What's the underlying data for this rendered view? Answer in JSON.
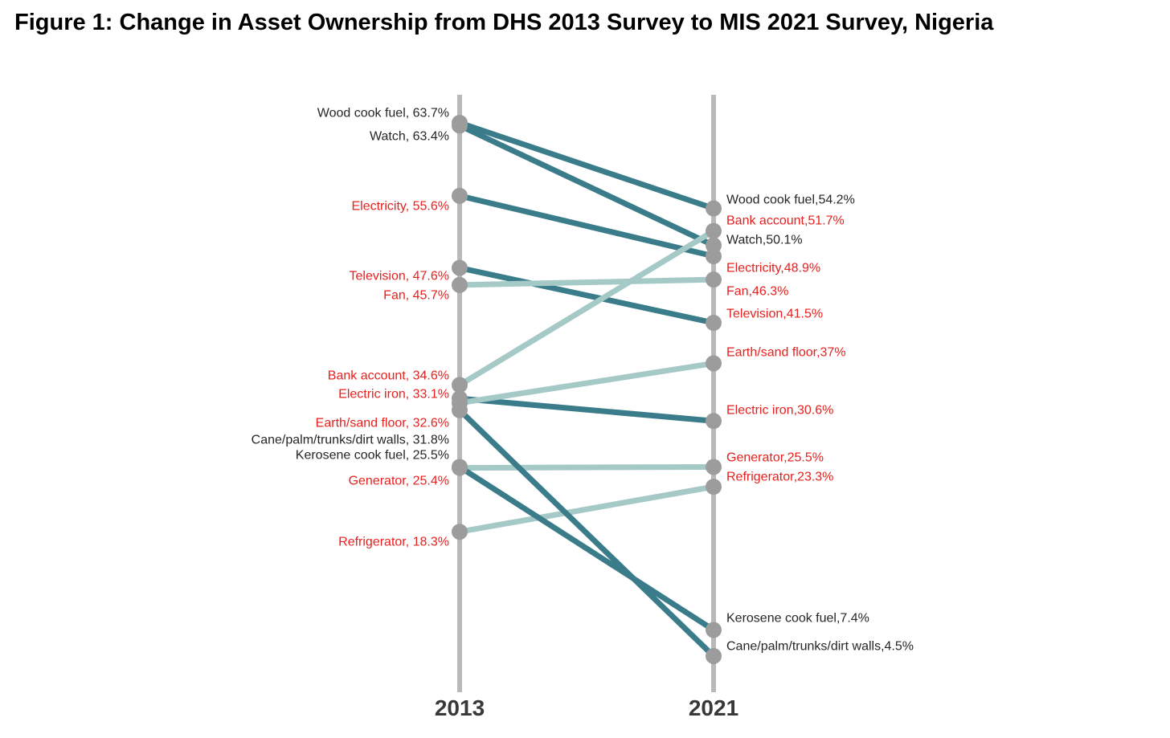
{
  "title": "Figure 1: Change in Asset Ownership from DHS 2013 Survey to MIS 2021 Survey, Nigeria",
  "chart_data": {
    "type": "line",
    "subtype": "slopegraph",
    "columns": [
      "2013",
      "2021"
    ],
    "value_unit": "%",
    "legend": "none",
    "grid": false,
    "colors": {
      "increase_line": "#a5c9c6",
      "decrease_line": "#3a7c8a",
      "dot": "#9c9c9c",
      "axis": "#b9b9b9",
      "label_red": "#e8201e",
      "label_black": "#262626"
    },
    "series": [
      {
        "name": "Wood cook fuel",
        "slug": "wood-cook-fuel",
        "values": [
          63.7,
          54.2
        ],
        "left_label": "Wood cook fuel, 63.7%",
        "right_label": "Wood cook fuel,54.2%",
        "label_color": "black",
        "direction": "decrease"
      },
      {
        "name": "Watch",
        "slug": "watch",
        "values": [
          63.4,
          50.1
        ],
        "left_label": "Watch, 63.4%",
        "right_label": "Watch,50.1%",
        "label_color": "black",
        "direction": "decrease"
      },
      {
        "name": "Electricity",
        "slug": "electricity",
        "values": [
          55.6,
          48.9
        ],
        "left_label": "Electricity, 55.6%",
        "right_label": "Electricity,48.9%",
        "label_color": "red",
        "direction": "decrease"
      },
      {
        "name": "Television",
        "slug": "television",
        "values": [
          47.6,
          41.5
        ],
        "left_label": "Television, 47.6%",
        "right_label": "Television,41.5%",
        "label_color": "red",
        "direction": "decrease"
      },
      {
        "name": "Fan",
        "slug": "fan",
        "values": [
          45.7,
          46.3
        ],
        "left_label": "Fan, 45.7%",
        "right_label": "Fan,46.3%",
        "label_color": "red",
        "direction": "increase"
      },
      {
        "name": "Bank account",
        "slug": "bank-account",
        "values": [
          34.6,
          51.7
        ],
        "left_label": "Bank account, 34.6%",
        "right_label": "Bank account,51.7%",
        "label_color": "red",
        "direction": "increase"
      },
      {
        "name": "Electric iron",
        "slug": "electric-iron",
        "values": [
          33.1,
          30.6
        ],
        "left_label": "Electric iron, 33.1%",
        "right_label": "Electric iron,30.6%",
        "label_color": "red",
        "direction": "decrease"
      },
      {
        "name": "Earth/sand floor",
        "slug": "earth-sand-floor",
        "values": [
          32.6,
          37
        ],
        "left_label": "Earth/sand floor, 32.6%",
        "right_label": "Earth/sand floor,37%",
        "label_color": "red",
        "direction": "increase"
      },
      {
        "name": "Cane/palm/trunks/dirt walls",
        "slug": "cane-palm-trunks-dirt-walls",
        "values": [
          31.8,
          4.5
        ],
        "left_label": "Cane/palm/trunks/dirt walls, 31.8%",
        "right_label": "Cane/palm/trunks/dirt walls,4.5%",
        "label_color": "black",
        "direction": "decrease"
      },
      {
        "name": "Kerosene cook fuel",
        "slug": "kerosene-cook-fuel",
        "values": [
          25.5,
          7.4
        ],
        "left_label": "Kerosene cook fuel, 25.5%",
        "right_label": "Kerosene cook fuel,7.4%",
        "label_color": "black",
        "direction": "decrease"
      },
      {
        "name": "Generator",
        "slug": "generator",
        "values": [
          25.4,
          25.5
        ],
        "left_label": "Generator, 25.4%",
        "right_label": "Generator,25.5%",
        "label_color": "red",
        "direction": "increase"
      },
      {
        "name": "Refrigerator",
        "slug": "refrigerator",
        "values": [
          18.3,
          23.3
        ],
        "left_label": "Refrigerator, 18.3%",
        "right_label": "Refrigerator,23.3%",
        "label_color": "red",
        "direction": "increase"
      }
    ]
  }
}
